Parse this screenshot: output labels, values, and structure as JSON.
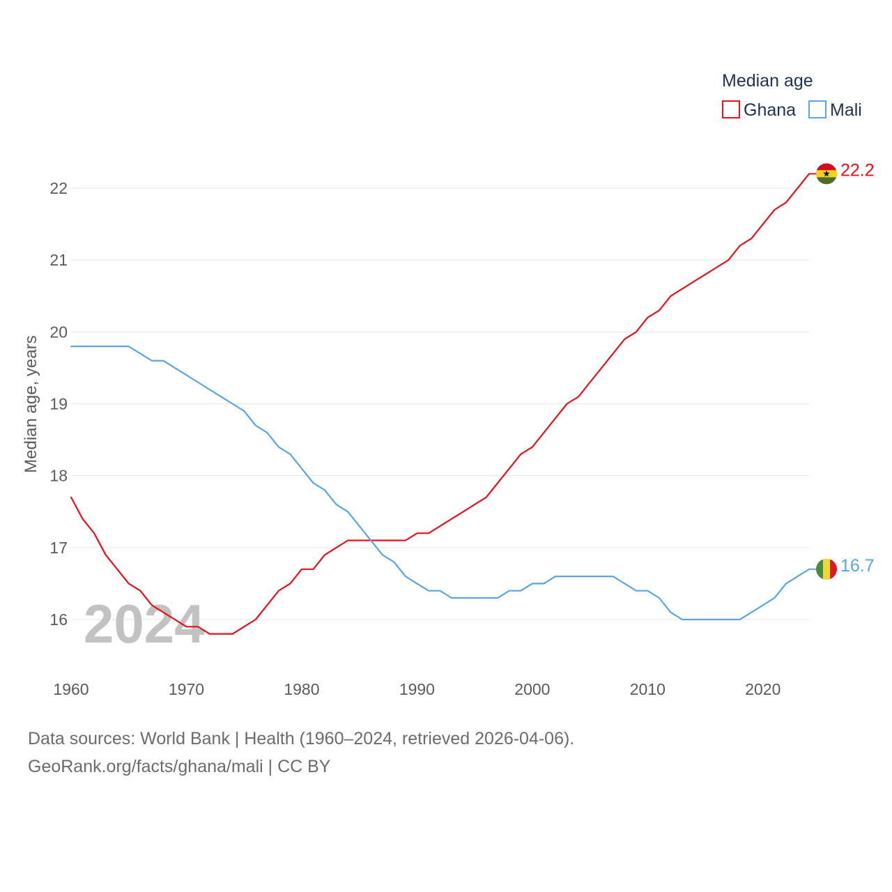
{
  "chart_data": {
    "type": "line",
    "title": "",
    "legend_title": "Median age",
    "ylabel": "Median age, years",
    "xlabel": "",
    "xlim": [
      1960,
      2024
    ],
    "ylim": [
      15.35,
      22.7
    ],
    "x_ticks": [
      1960,
      1970,
      1980,
      1990,
      2000,
      2010,
      2020
    ],
    "y_ticks": [
      16,
      17,
      18,
      19,
      20,
      21,
      22
    ],
    "grid": true,
    "legend_position": "top-right",
    "current_year": "2024",
    "x": [
      1960,
      1961,
      1962,
      1963,
      1964,
      1965,
      1966,
      1967,
      1968,
      1969,
      1970,
      1971,
      1972,
      1973,
      1974,
      1975,
      1976,
      1977,
      1978,
      1979,
      1980,
      1981,
      1982,
      1983,
      1984,
      1985,
      1986,
      1987,
      1988,
      1989,
      1990,
      1991,
      1992,
      1993,
      1994,
      1995,
      1996,
      1997,
      1998,
      1999,
      2000,
      2001,
      2002,
      2003,
      2004,
      2005,
      2006,
      2007,
      2008,
      2009,
      2010,
      2011,
      2012,
      2013,
      2014,
      2015,
      2016,
      2017,
      2018,
      2019,
      2020,
      2021,
      2022,
      2023,
      2024
    ],
    "series": [
      {
        "name": "Ghana",
        "color": "#e8111b",
        "end_label": "22.2",
        "values": [
          17.7,
          17.4,
          17.2,
          16.9,
          16.7,
          16.5,
          16.4,
          16.2,
          16.1,
          16.0,
          15.9,
          15.9,
          15.8,
          15.8,
          15.8,
          15.9,
          16.0,
          16.2,
          16.4,
          16.5,
          16.7,
          16.7,
          16.9,
          17.0,
          17.1,
          17.1,
          17.1,
          17.1,
          17.1,
          17.1,
          17.2,
          17.2,
          17.3,
          17.4,
          17.5,
          17.6,
          17.7,
          17.9,
          18.1,
          18.3,
          18.4,
          18.6,
          18.8,
          19.0,
          19.1,
          19.3,
          19.5,
          19.7,
          19.9,
          20.0,
          20.2,
          20.3,
          20.5,
          20.6,
          20.7,
          20.8,
          20.9,
          21.0,
          21.2,
          21.3,
          21.5,
          21.7,
          21.8,
          22.0,
          22.2
        ]
      },
      {
        "name": "Mali",
        "color": "#5ba3e4",
        "end_label": "16.7",
        "values": [
          19.8,
          19.8,
          19.8,
          19.8,
          19.8,
          19.8,
          19.7,
          19.6,
          19.6,
          19.5,
          19.4,
          19.3,
          19.2,
          19.1,
          19.0,
          18.9,
          18.7,
          18.6,
          18.4,
          18.3,
          18.1,
          17.9,
          17.8,
          17.6,
          17.5,
          17.3,
          17.1,
          16.9,
          16.8,
          16.6,
          16.5,
          16.4,
          16.4,
          16.3,
          16.3,
          16.3,
          16.3,
          16.3,
          16.4,
          16.4,
          16.5,
          16.5,
          16.6,
          16.6,
          16.6,
          16.6,
          16.6,
          16.6,
          16.5,
          16.4,
          16.4,
          16.3,
          16.1,
          16.0,
          16.0,
          16.0,
          16.0,
          16.0,
          16.0,
          16.1,
          16.2,
          16.3,
          16.5,
          16.6,
          16.7
        ]
      }
    ]
  },
  "footer": {
    "sources": "Data sources: World Bank | Health (1960–2024, retrieved 2026-04-06).",
    "link": "GeoRank.org/facts/ghana/mali | CC BY"
  }
}
